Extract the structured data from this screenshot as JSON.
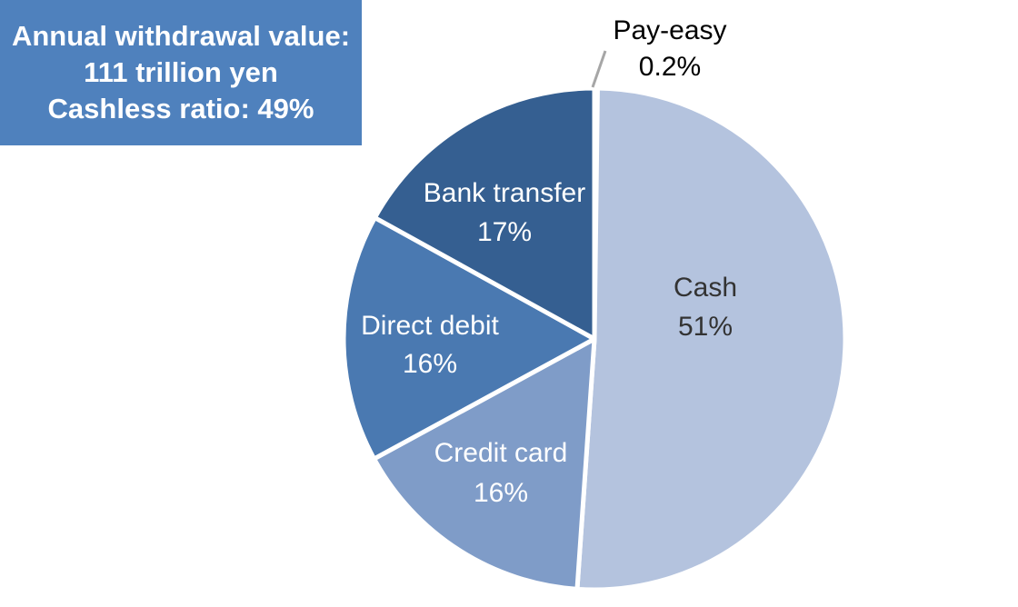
{
  "info_box": {
    "line1": "Annual withdrawal value:",
    "line2": "111 trillion yen",
    "line3": "Cashless ratio: 49%",
    "color": "#4f81bd"
  },
  "chart_data": {
    "type": "pie",
    "start": "top",
    "direction": "clockwise",
    "slices": [
      {
        "label": "Pay-easy",
        "value": 0.2,
        "display": "0.2%",
        "color": "#4f81bd"
      },
      {
        "label": "Cash",
        "value": 51,
        "display": "51%",
        "color": "#b4c3de"
      },
      {
        "label": "Credit card",
        "value": 16,
        "display": "16%",
        "color": "#7f9cc8"
      },
      {
        "label": "Direct debit",
        "value": 16,
        "display": "16%",
        "color": "#4a79b1"
      },
      {
        "label": "Bank transfer",
        "value": 17,
        "display": "17%",
        "color": "#355f91"
      }
    ]
  }
}
